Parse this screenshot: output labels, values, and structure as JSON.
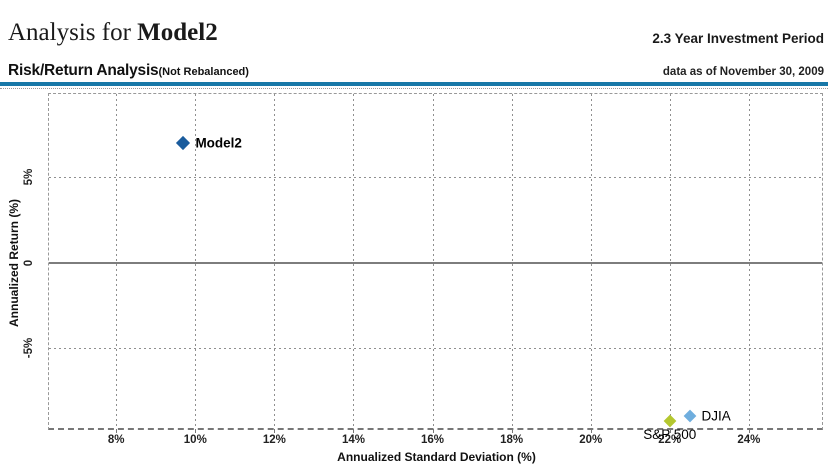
{
  "header": {
    "title_regular": "Analysis for ",
    "title_bold": "Model2",
    "investment_period": "2.3 Year Investment Period",
    "section_title": "Risk/Return Analysis",
    "section_subtitle": "(Not Rebalanced)",
    "data_as_of": "data as of November 30, 2009",
    "accent_color": "#1878a8"
  },
  "chart_data": {
    "type": "scatter",
    "title": "Risk/Return Analysis (Not Rebalanced)",
    "xlabel": "Annualized Standard Deviation (%)",
    "ylabel": "Annualized Return (%)",
    "xlim": [
      6.3,
      25.9
    ],
    "ylim": [
      -9.9,
      9.9
    ],
    "grid": "dashed-gray",
    "legend_position": "none-inline-labels",
    "x_ticks": [
      {
        "value": 8,
        "label": "8%"
      },
      {
        "value": 10,
        "label": "10%"
      },
      {
        "value": 12,
        "label": "12%"
      },
      {
        "value": 14,
        "label": "14%"
      },
      {
        "value": 16,
        "label": "16%"
      },
      {
        "value": 18,
        "label": "18%"
      },
      {
        "value": 20,
        "label": "20%"
      },
      {
        "value": 22,
        "label": "22%"
      },
      {
        "value": 24,
        "label": "24%"
      }
    ],
    "y_ticks": [
      {
        "value": 5,
        "label": "5%"
      },
      {
        "value": 0,
        "label": "0"
      },
      {
        "value": -5,
        "label": "-5%"
      }
    ],
    "points": [
      {
        "name": "Model2",
        "x": 9.7,
        "y": 7.0,
        "color": "#1a5c9d",
        "marker": "diamond",
        "size": 10,
        "label_placement": "right",
        "label_bold": true
      },
      {
        "name": "S&P 500",
        "x": 22.0,
        "y": -9.3,
        "color": "#b4c72f",
        "marker": "diamond",
        "size": 9,
        "label_placement": "below",
        "label_bold": false
      },
      {
        "name": "DJIA",
        "x": 22.5,
        "y": -9.0,
        "color": "#6faede",
        "marker": "diamond",
        "size": 9,
        "label_placement": "right",
        "label_bold": false
      }
    ]
  }
}
